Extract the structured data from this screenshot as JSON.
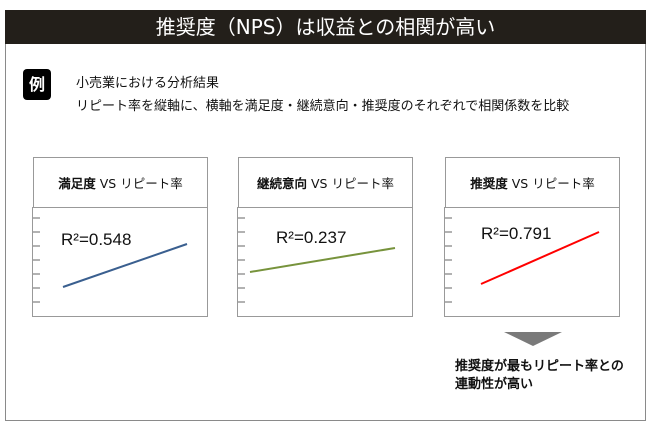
{
  "header": {
    "title": "推奨度（NPS）は収益との相関が高い"
  },
  "example": {
    "badge": "例",
    "line1": "小売業における分析結果",
    "line2": "リピート率を縦軸に、横軸を満足度・継続意向・推奨度のそれぞれで相関係数を比較"
  },
  "panels": [
    {
      "metric": "満足度",
      "vs": " VS リピート率",
      "r2": "R²=0.548",
      "color": "#3a5f8f"
    },
    {
      "metric": "継続意向",
      "vs": " VS リピート率",
      "r2": "R²=0.237",
      "color": "#77933c"
    },
    {
      "metric": "推奨度",
      "vs": " VS リピート率",
      "r2": "R²=0.791",
      "color": "#ff0000"
    }
  ],
  "conclusion": "推奨度が最もリピート率との連動性が高い"
}
